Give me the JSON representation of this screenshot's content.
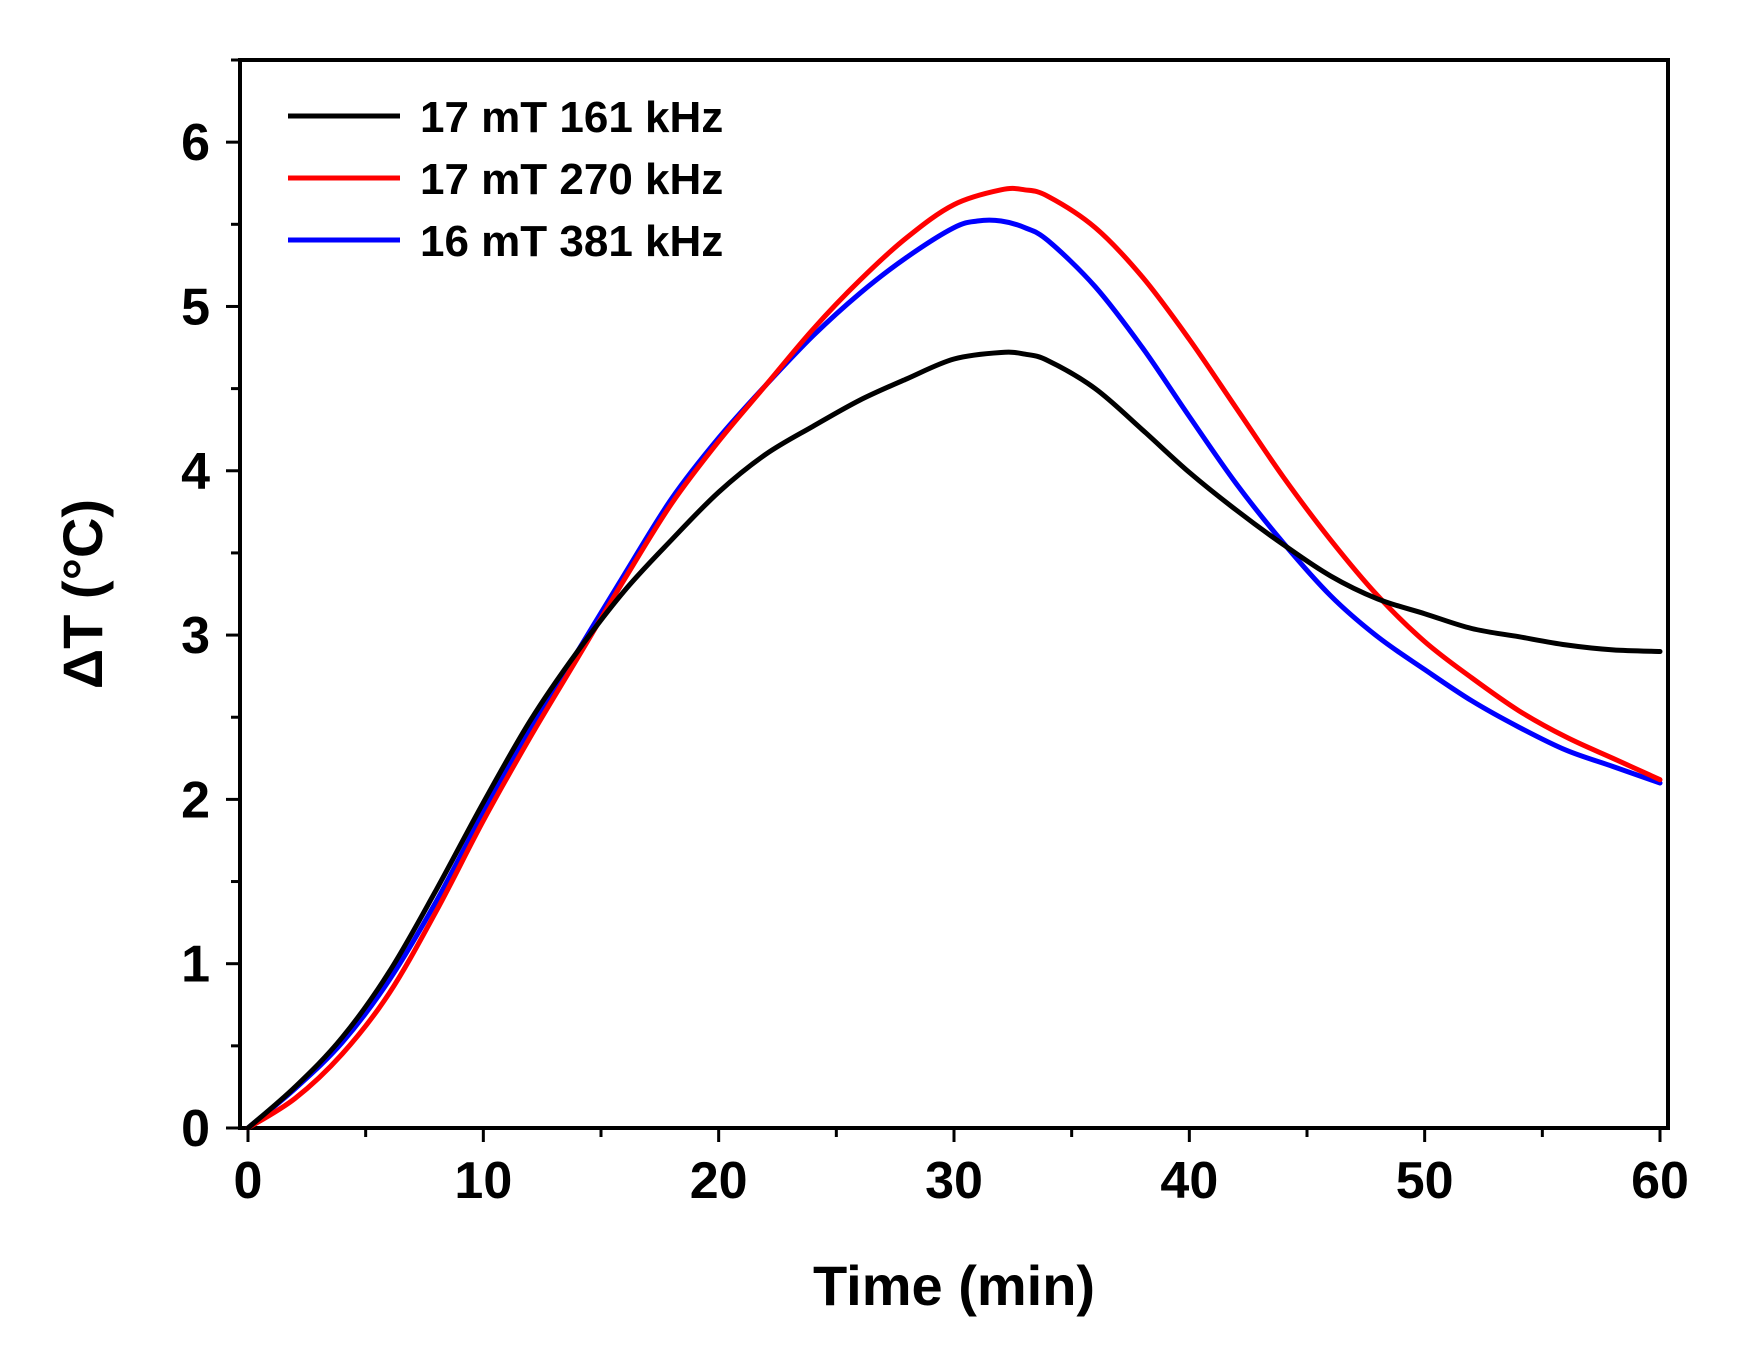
{
  "chart_data": {
    "type": "line",
    "title": "",
    "xlabel": "Time (min)",
    "ylabel": "ΔT (°C)",
    "xlim": [
      0,
      60
    ],
    "ylim": [
      0,
      6.5
    ],
    "xticks": [
      0,
      10,
      20,
      30,
      40,
      50,
      60
    ],
    "xtick_labels": [
      "0",
      "10",
      "20",
      "30",
      "40",
      "50",
      "60"
    ],
    "yticks": [
      0,
      1,
      2,
      3,
      4,
      5,
      6
    ],
    "ytick_labels": [
      "0",
      "1",
      "2",
      "3",
      "4",
      "5",
      "6"
    ],
    "grid": false,
    "legend_position": "top-left",
    "series": [
      {
        "name": "17 mT 161 kHz",
        "color": "#000000",
        "x": [
          0,
          2,
          4,
          6,
          8,
          10,
          12,
          14,
          16,
          18,
          20,
          22,
          24,
          26,
          28,
          30,
          32,
          33,
          34,
          36,
          38,
          40,
          42,
          44,
          46,
          48,
          50,
          52,
          54,
          56,
          58,
          60
        ],
        "y": [
          0,
          0.25,
          0.55,
          0.95,
          1.45,
          1.98,
          2.48,
          2.9,
          3.27,
          3.58,
          3.87,
          4.1,
          4.27,
          4.43,
          4.56,
          4.68,
          4.72,
          4.71,
          4.67,
          4.5,
          4.25,
          3.99,
          3.76,
          3.55,
          3.36,
          3.22,
          3.13,
          3.04,
          2.99,
          2.94,
          2.91,
          2.9
        ]
      },
      {
        "name": "17 mT 270 kHz",
        "color": "#ff0000",
        "x": [
          0,
          2,
          4,
          6,
          8,
          10,
          12,
          14,
          16,
          18,
          20,
          22,
          24,
          26,
          28,
          30,
          32,
          33,
          34,
          36,
          38,
          40,
          42,
          44,
          46,
          48,
          50,
          52,
          54,
          56,
          58,
          60
        ],
        "y": [
          0,
          0.18,
          0.45,
          0.82,
          1.32,
          1.87,
          2.38,
          2.86,
          3.34,
          3.8,
          4.18,
          4.52,
          4.86,
          5.16,
          5.42,
          5.62,
          5.71,
          5.71,
          5.67,
          5.48,
          5.18,
          4.8,
          4.38,
          3.96,
          3.58,
          3.24,
          2.96,
          2.74,
          2.54,
          2.38,
          2.25,
          2.12
        ]
      },
      {
        "name": "16 mT 381 kHz",
        "color": "#0000ff",
        "x": [
          0,
          2,
          4,
          6,
          8,
          10,
          12,
          14,
          16,
          18,
          20,
          22,
          24,
          26,
          28,
          30,
          31,
          32,
          33,
          34,
          36,
          38,
          40,
          42,
          44,
          46,
          48,
          50,
          52,
          54,
          56,
          58,
          60
        ],
        "y": [
          0,
          0.24,
          0.52,
          0.9,
          1.38,
          1.92,
          2.43,
          2.9,
          3.37,
          3.83,
          4.2,
          4.52,
          4.82,
          5.08,
          5.3,
          5.48,
          5.52,
          5.52,
          5.48,
          5.4,
          5.12,
          4.75,
          4.33,
          3.92,
          3.56,
          3.24,
          2.99,
          2.79,
          2.6,
          2.44,
          2.3,
          2.2,
          2.1
        ]
      }
    ]
  }
}
